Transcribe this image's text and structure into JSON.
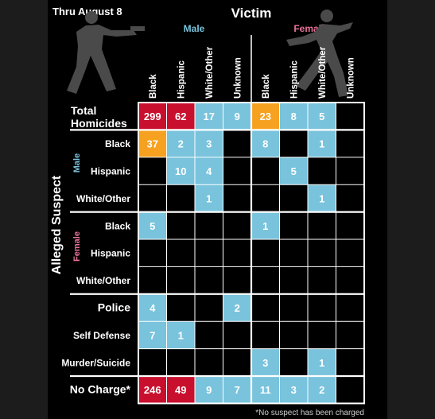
{
  "header": {
    "date_label": "Thru August 8",
    "victim_label": "Victim",
    "male_label": "Male",
    "female_label": "Female"
  },
  "labels": {
    "suspect_axis": "Alleged Suspect",
    "male_group": "Male",
    "female_group": "Female",
    "footnote": "*No suspect has been charged"
  },
  "colors": {
    "blue": "#79c3dc",
    "orange": "#f7a120",
    "red": "#c8102e",
    "male": "#79c3dc",
    "female": "#e8739a",
    "background": "#000000"
  },
  "chart_data": {
    "type": "table",
    "title": "",
    "columns": [
      {
        "label": "Black",
        "group": "Male"
      },
      {
        "label": "Hispanic",
        "group": "Male"
      },
      {
        "label": "White/Other",
        "group": "Male"
      },
      {
        "label": "Unknown",
        "group": "Male"
      },
      {
        "label": "Black",
        "group": "Female"
      },
      {
        "label": "Hispanic",
        "group": "Female"
      },
      {
        "label": "White/Other",
        "group": "Female"
      },
      {
        "label": "Unknown",
        "group": "Female"
      }
    ],
    "rows": [
      {
        "label": "Total Homicides",
        "group": "",
        "values": [
          299,
          62,
          17,
          9,
          23,
          8,
          5,
          null
        ],
        "colors": [
          "red",
          "red",
          "blue",
          "blue",
          "orange",
          "blue",
          "blue",
          null
        ]
      },
      {
        "label": "Black",
        "group": "Male",
        "values": [
          37,
          2,
          3,
          null,
          8,
          null,
          1,
          null
        ],
        "colors": [
          "orange",
          "blue",
          "blue",
          null,
          "blue",
          null,
          "blue",
          null
        ]
      },
      {
        "label": "Hispanic",
        "group": "Male",
        "values": [
          null,
          10,
          4,
          null,
          null,
          5,
          null,
          null
        ],
        "colors": [
          null,
          "blue",
          "blue",
          null,
          null,
          "blue",
          null,
          null
        ]
      },
      {
        "label": "White/Other",
        "group": "Male",
        "values": [
          null,
          null,
          1,
          null,
          null,
          null,
          1,
          null
        ],
        "colors": [
          null,
          null,
          "blue",
          null,
          null,
          null,
          "blue",
          null
        ]
      },
      {
        "label": "Black",
        "group": "Female",
        "values": [
          5,
          null,
          null,
          null,
          1,
          null,
          null,
          null
        ],
        "colors": [
          "blue",
          null,
          null,
          null,
          "blue",
          null,
          null,
          null
        ]
      },
      {
        "label": "Hispanic",
        "group": "Female",
        "values": [
          null,
          null,
          null,
          null,
          null,
          null,
          null,
          null
        ],
        "colors": [
          null,
          null,
          null,
          null,
          null,
          null,
          null,
          null
        ]
      },
      {
        "label": "White/Other",
        "group": "Female",
        "values": [
          null,
          null,
          null,
          null,
          null,
          null,
          null,
          null
        ],
        "colors": [
          null,
          null,
          null,
          null,
          null,
          null,
          null,
          null
        ]
      },
      {
        "label": "Police",
        "group": "",
        "values": [
          4,
          null,
          null,
          2,
          null,
          null,
          null,
          null
        ],
        "colors": [
          "blue",
          null,
          null,
          "blue",
          null,
          null,
          null,
          null
        ]
      },
      {
        "label": "Self Defense",
        "group": "",
        "values": [
          7,
          1,
          null,
          null,
          null,
          null,
          null,
          null
        ],
        "colors": [
          "blue",
          "blue",
          null,
          null,
          null,
          null,
          null,
          null
        ]
      },
      {
        "label": "Murder/Suicide",
        "group": "",
        "values": [
          null,
          null,
          null,
          null,
          3,
          null,
          1,
          null
        ],
        "colors": [
          null,
          null,
          null,
          null,
          "blue",
          null,
          "blue",
          null
        ]
      },
      {
        "label": "No Charge*",
        "group": "",
        "values": [
          246,
          49,
          9,
          7,
          11,
          3,
          2,
          null
        ],
        "colors": [
          "red",
          "red",
          "blue",
          "blue",
          "blue",
          "blue",
          "blue",
          null
        ]
      }
    ]
  }
}
